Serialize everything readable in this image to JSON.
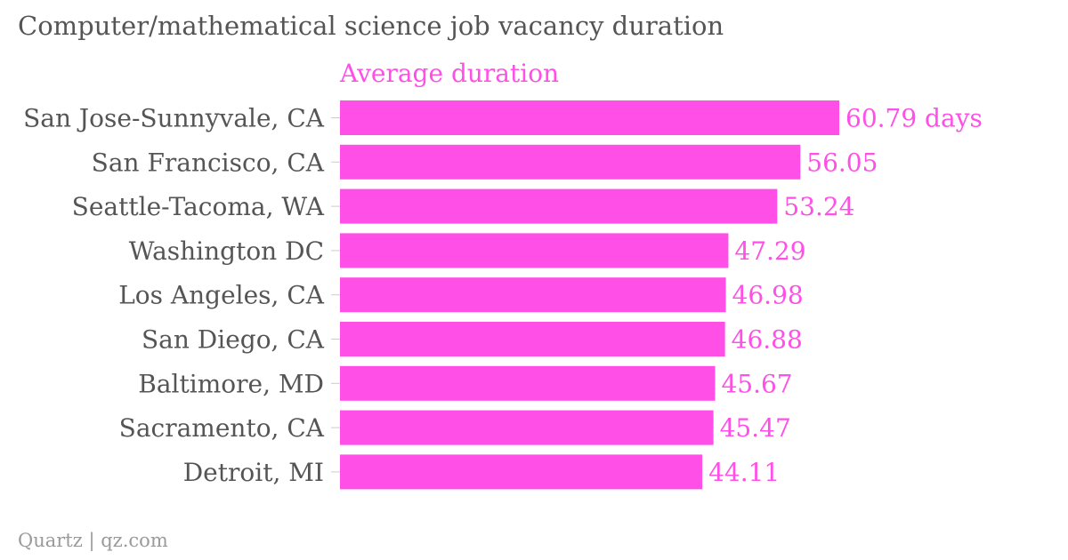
{
  "chart_data": {
    "type": "bar",
    "orientation": "horizontal",
    "title": "Computer/mathematical science job vacancy duration",
    "categories": [
      "San Jose-Sunnyvale, CA",
      "San Francisco, CA",
      "Seattle-Tacoma, WA",
      "Washington DC",
      "Los Angeles, CA",
      "San Diego, CA",
      "Baltimore, MD",
      "Sacramento, CA",
      "Detroit, MI"
    ],
    "series": [
      {
        "name": "Average duration",
        "color": "#ff4fe6",
        "values": [
          60.79,
          56.05,
          53.24,
          47.29,
          46.98,
          46.88,
          45.67,
          45.47,
          44.11
        ]
      }
    ],
    "value_labels": [
      "60.79 days",
      "56.05",
      "53.24",
      "47.29",
      "46.98",
      "46.88",
      "45.67",
      "45.47",
      "44.11"
    ],
    "xlim": [
      0,
      60.79
    ],
    "grid": false,
    "legend": "top"
  },
  "footer": {
    "source": "Quartz | qz.com"
  }
}
